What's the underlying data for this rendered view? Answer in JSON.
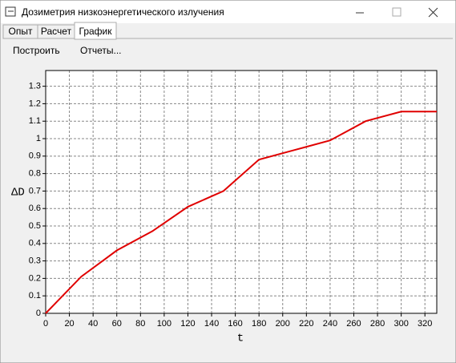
{
  "window": {
    "title": "Дозиметрия низкоэнергетического излучения"
  },
  "tabs": [
    "Опыт",
    "Расчет",
    "График"
  ],
  "toolbar": [
    "Построить",
    "Отчеты..."
  ],
  "chart_data": {
    "type": "line",
    "y_label": "ΔD",
    "x_label": "t",
    "x": [
      0,
      30,
      60,
      90,
      120,
      150,
      180,
      210,
      240,
      270,
      300,
      330
    ],
    "series": [
      {
        "color": "#e00000",
        "values": [
          0,
          0.21,
          0.36,
          0.47,
          0.61,
          0.7,
          0.88,
          0.935,
          0.99,
          1.1,
          1.155,
          1.155
        ]
      }
    ],
    "xlim": [
      0,
      330
    ],
    "ylim": [
      0,
      1.39
    ],
    "xticks": [
      0,
      20,
      40,
      60,
      80,
      100,
      120,
      140,
      160,
      180,
      200,
      220,
      240,
      260,
      280,
      300,
      320
    ],
    "yticks": [
      0,
      0.1,
      0.2,
      0.3,
      0.4,
      0.5,
      0.6,
      0.7,
      0.8,
      0.9,
      1,
      1.1,
      1.2,
      1.3
    ],
    "grid": true
  }
}
